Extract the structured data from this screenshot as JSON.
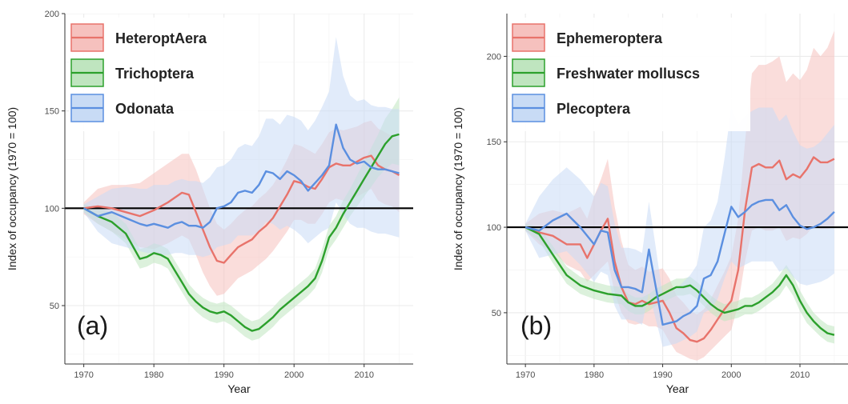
{
  "chart_data": [
    {
      "type": "line",
      "panel_label": "(a)",
      "xlabel": "Year",
      "ylabel": "Index of occupancy (1970 = 100)",
      "xlim": [
        1967.3,
        2017
      ],
      "ylim": [
        20,
        200
      ],
      "xticks": [
        1970,
        1980,
        1990,
        2000,
        2010
      ],
      "yticks": [
        50,
        100,
        150,
        200
      ],
      "reference_line": 100,
      "grid": true,
      "legend_position": "top-left",
      "series": [
        {
          "name": "HeteroptAera",
          "color": "#e8736b",
          "fill": "#f6c1be",
          "x": [
            1970,
            1972,
            1974,
            1976,
            1978,
            1980,
            1982,
            1984,
            1985,
            1986,
            1987,
            1988,
            1989,
            1990,
            1991,
            1992,
            1993,
            1994,
            1995,
            1996,
            1997,
            1998,
            1999,
            2000,
            2001,
            2002,
            2003,
            2004,
            2005,
            2006,
            2007,
            2008,
            2009,
            2010,
            2011,
            2012,
            2013,
            2014,
            2015
          ],
          "values": [
            100,
            101,
            100,
            98,
            96,
            99,
            103,
            108,
            107,
            98,
            89,
            80,
            73,
            72,
            76,
            80,
            82,
            84,
            88,
            91,
            95,
            101,
            107,
            114,
            113,
            111,
            110,
            115,
            121,
            123,
            122,
            122,
            124,
            126,
            127,
            122,
            120,
            119,
            117
          ],
          "lower": [
            97,
            92,
            88,
            84,
            80,
            79,
            82,
            86,
            84,
            76,
            67,
            60,
            55,
            56,
            60,
            64,
            66,
            68,
            71,
            74,
            78,
            83,
            88,
            94,
            94,
            92,
            92,
            97,
            103,
            105,
            104,
            104,
            106,
            108,
            110,
            104,
            102,
            101,
            98
          ],
          "upper": [
            103,
            110,
            112,
            112,
            113,
            118,
            123,
            128,
            128,
            120,
            110,
            100,
            92,
            89,
            92,
            96,
            99,
            101,
            105,
            108,
            112,
            118,
            125,
            133,
            132,
            130,
            128,
            133,
            139,
            141,
            140,
            141,
            142,
            144,
            145,
            141,
            139,
            137,
            135
          ]
        },
        {
          "name": "Trichoptera",
          "color": "#2ca02c",
          "fill": "#bfe5bf",
          "x": [
            1970,
            1972,
            1974,
            1976,
            1978,
            1979,
            1980,
            1981,
            1982,
            1983,
            1984,
            1985,
            1986,
            1987,
            1988,
            1989,
            1990,
            1991,
            1992,
            1993,
            1994,
            1995,
            1996,
            1997,
            1998,
            1999,
            2000,
            2001,
            2002,
            2003,
            2004,
            2005,
            2006,
            2007,
            2008,
            2009,
            2010,
            2011,
            2012,
            2013,
            2014,
            2015
          ],
          "values": [
            100,
            96,
            93,
            87,
            74,
            75,
            77,
            76,
            74,
            68,
            62,
            56,
            52,
            49,
            47,
            46,
            47,
            45,
            42,
            39,
            37,
            38,
            41,
            44,
            48,
            51,
            54,
            57,
            60,
            64,
            73,
            85,
            90,
            97,
            103,
            109,
            115,
            121,
            127,
            133,
            137,
            138
          ],
          "lower": [
            98,
            92,
            88,
            82,
            69,
            70,
            72,
            71,
            69,
            63,
            57,
            51,
            47,
            44,
            42,
            41,
            42,
            40,
            37,
            34,
            32,
            33,
            36,
            39,
            43,
            46,
            49,
            52,
            55,
            59,
            67,
            79,
            84,
            90,
            96,
            101,
            106,
            111,
            116,
            120,
            123,
            122
          ],
          "upper": [
            102,
            100,
            98,
            92,
            79,
            80,
            82,
            81,
            79,
            73,
            67,
            61,
            57,
            54,
            52,
            51,
            52,
            50,
            47,
            44,
            42,
            43,
            46,
            49,
            53,
            56,
            59,
            62,
            65,
            69,
            79,
            91,
            96,
            104,
            110,
            117,
            124,
            131,
            138,
            146,
            151,
            157
          ]
        },
        {
          "name": "Odonata",
          "color": "#5b8fe0",
          "fill": "#c8dbf5",
          "x": [
            1970,
            1972,
            1974,
            1976,
            1978,
            1979,
            1980,
            1981,
            1982,
            1983,
            1984,
            1985,
            1986,
            1987,
            1988,
            1989,
            1990,
            1991,
            1992,
            1993,
            1994,
            1995,
            1996,
            1997,
            1998,
            1999,
            2000,
            2001,
            2002,
            2003,
            2004,
            2005,
            2006,
            2007,
            2008,
            2009,
            2010,
            2011,
            2012,
            2013,
            2014,
            2015
          ],
          "values": [
            100,
            96,
            98,
            95,
            92,
            91,
            92,
            91,
            90,
            92,
            93,
            91,
            91,
            90,
            93,
            100,
            101,
            103,
            108,
            109,
            108,
            112,
            119,
            118,
            115,
            119,
            117,
            114,
            109,
            113,
            117,
            122,
            143,
            131,
            125,
            123,
            124,
            121,
            120,
            120,
            119,
            118
          ],
          "lower": [
            98,
            88,
            82,
            80,
            78,
            77,
            77,
            76,
            76,
            77,
            77,
            76,
            76,
            75,
            76,
            80,
            81,
            82,
            86,
            86,
            86,
            88,
            93,
            92,
            89,
            91,
            89,
            86,
            82,
            85,
            88,
            90,
            103,
            97,
            92,
            90,
            90,
            88,
            87,
            87,
            86,
            85
          ],
          "upper": [
            102,
            106,
            110,
            111,
            110,
            110,
            112,
            112,
            112,
            114,
            115,
            114,
            114,
            113,
            116,
            121,
            122,
            125,
            131,
            133,
            132,
            137,
            146,
            146,
            143,
            148,
            147,
            145,
            140,
            145,
            152,
            160,
            188,
            168,
            158,
            155,
            156,
            153,
            152,
            152,
            151,
            151
          ]
        }
      ]
    },
    {
      "type": "line",
      "panel_label": "(b)",
      "xlabel": "Year",
      "ylabel": "Index of occupancy (1970 = 100)",
      "xlim": [
        1967.3,
        2017
      ],
      "ylim": [
        20,
        225
      ],
      "xticks": [
        1970,
        1980,
        1990,
        2000,
        2010
      ],
      "yticks": [
        50,
        100,
        150,
        200
      ],
      "reference_line": 100,
      "grid": true,
      "legend_position": "top-left",
      "series": [
        {
          "name": "Ephemeroptera",
          "color": "#e8736b",
          "fill": "#f6c1be",
          "x": [
            1970,
            1972,
            1974,
            1976,
            1978,
            1979,
            1980,
            1981,
            1982,
            1983,
            1984,
            1985,
            1986,
            1987,
            1988,
            1989,
            1990,
            1991,
            1992,
            1993,
            1994,
            1995,
            1996,
            1997,
            1998,
            1999,
            2000,
            2001,
            2002,
            2003,
            2004,
            2005,
            2006,
            2007,
            2008,
            2009,
            2010,
            2011,
            2012,
            2013,
            2014,
            2015
          ],
          "values": [
            100,
            97,
            95,
            90,
            90,
            82,
            90,
            98,
            105,
            80,
            65,
            56,
            55,
            57,
            55,
            56,
            57,
            50,
            41,
            38,
            34,
            33,
            35,
            40,
            46,
            52,
            57,
            75,
            110,
            135,
            137,
            135,
            135,
            139,
            128,
            131,
            129,
            134,
            141,
            138,
            138,
            140
          ],
          "lower": [
            98,
            90,
            86,
            78,
            74,
            68,
            72,
            76,
            80,
            62,
            50,
            44,
            43,
            44,
            42,
            42,
            40,
            33,
            27,
            25,
            23,
            22,
            24,
            28,
            32,
            36,
            40,
            55,
            80,
            98,
            100,
            98,
            98,
            100,
            92,
            94,
            93,
            96,
            101,
            99,
            99,
            100
          ],
          "upper": [
            102,
            108,
            110,
            108,
            112,
            105,
            118,
            128,
            140,
            112,
            92,
            78,
            75,
            77,
            74,
            75,
            76,
            70,
            60,
            56,
            51,
            49,
            52,
            58,
            66,
            74,
            83,
            105,
            150,
            190,
            195,
            195,
            197,
            200,
            185,
            190,
            186,
            192,
            205,
            200,
            205,
            215
          ]
        },
        {
          "name": "Freshwater molluscs",
          "color": "#2ca02c",
          "fill": "#bfe5bf",
          "x": [
            1970,
            1972,
            1974,
            1976,
            1978,
            1980,
            1982,
            1984,
            1985,
            1986,
            1987,
            1988,
            1989,
            1990,
            1991,
            1992,
            1993,
            1994,
            1995,
            1996,
            1997,
            1998,
            1999,
            2000,
            2001,
            2002,
            2003,
            2004,
            2005,
            2006,
            2007,
            2008,
            2009,
            2010,
            2011,
            2012,
            2013,
            2014,
            2015
          ],
          "values": [
            100,
            96,
            84,
            72,
            66,
            63,
            61,
            60,
            56,
            54,
            54,
            56,
            59,
            61,
            63,
            65,
            65,
            66,
            63,
            59,
            55,
            52,
            50,
            51,
            52,
            54,
            54,
            56,
            59,
            62,
            66,
            72,
            66,
            57,
            50,
            45,
            41,
            38,
            37
          ],
          "lower": [
            98,
            92,
            79,
            67,
            61,
            58,
            56,
            55,
            51,
            49,
            49,
            51,
            54,
            56,
            58,
            60,
            60,
            61,
            58,
            54,
            50,
            47,
            45,
            46,
            47,
            49,
            49,
            51,
            54,
            57,
            60,
            66,
            60,
            51,
            44,
            40,
            36,
            33,
            32
          ],
          "upper": [
            102,
            100,
            89,
            77,
            71,
            68,
            66,
            65,
            61,
            59,
            59,
            61,
            64,
            66,
            68,
            70,
            70,
            71,
            68,
            64,
            60,
            57,
            55,
            56,
            57,
            59,
            59,
            61,
            64,
            67,
            72,
            78,
            72,
            63,
            56,
            50,
            46,
            43,
            42
          ]
        },
        {
          "name": "Plecoptera",
          "color": "#5b8fe0",
          "fill": "#c8dbf5",
          "x": [
            1970,
            1972,
            1974,
            1976,
            1978,
            1980,
            1981,
            1982,
            1983,
            1984,
            1985,
            1986,
            1987,
            1988,
            1989,
            1990,
            1991,
            1992,
            1993,
            1994,
            1995,
            1996,
            1997,
            1998,
            1999,
            2000,
            2001,
            2002,
            2003,
            2004,
            2005,
            2006,
            2007,
            2008,
            2009,
            2010,
            2011,
            2012,
            2013,
            2014,
            2015
          ],
          "values": [
            100,
            98,
            104,
            108,
            100,
            90,
            98,
            97,
            75,
            65,
            65,
            64,
            62,
            87,
            65,
            43,
            44,
            45,
            48,
            50,
            54,
            70,
            72,
            80,
            96,
            112,
            106,
            109,
            113,
            115,
            116,
            116,
            110,
            113,
            106,
            101,
            99,
            100,
            102,
            105,
            109
          ],
          "lower": [
            98,
            82,
            84,
            86,
            78,
            68,
            74,
            72,
            54,
            46,
            46,
            45,
            43,
            62,
            46,
            30,
            31,
            32,
            34,
            36,
            39,
            50,
            52,
            58,
            70,
            80,
            76,
            78,
            80,
            80,
            80,
            80,
            74,
            76,
            71,
            67,
            66,
            67,
            68,
            70,
            73
          ],
          "upper": [
            102,
            118,
            128,
            135,
            128,
            118,
            126,
            124,
            102,
            88,
            88,
            87,
            85,
            115,
            88,
            60,
            62,
            64,
            68,
            72,
            78,
            100,
            104,
            115,
            140,
            170,
            160,
            165,
            168,
            170,
            170,
            170,
            162,
            166,
            156,
            148,
            146,
            147,
            150,
            155,
            160
          ]
        }
      ]
    }
  ]
}
